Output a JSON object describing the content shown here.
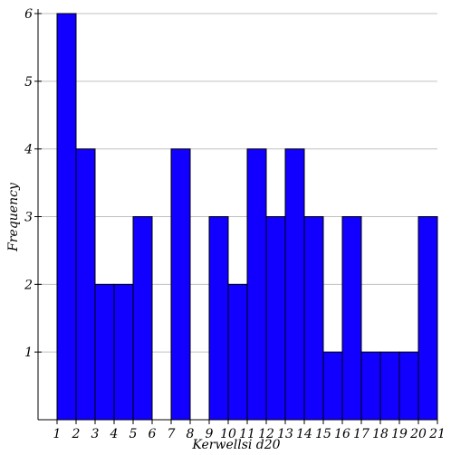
{
  "chart_data": {
    "type": "bar",
    "title": "",
    "xlabel": "Kerwellsi d20",
    "ylabel": "Frequency",
    "x_ticks": [
      "1",
      "2",
      "3",
      "4",
      "5",
      "6",
      "7",
      "8",
      "9",
      "10",
      "11",
      "12",
      "13",
      "14",
      "15",
      "16",
      "17",
      "18",
      "19",
      "20",
      "21"
    ],
    "y_ticks": [
      "1",
      "2",
      "3",
      "4",
      "5",
      "6"
    ],
    "xlim": [
      1,
      21
    ],
    "ylim": [
      0,
      6
    ],
    "bins": [
      {
        "start": 1,
        "end": 2,
        "value": 6
      },
      {
        "start": 2,
        "end": 3,
        "value": 4
      },
      {
        "start": 3,
        "end": 4,
        "value": 2
      },
      {
        "start": 4,
        "end": 5,
        "value": 2
      },
      {
        "start": 5,
        "end": 6,
        "value": 3
      },
      {
        "start": 6,
        "end": 7,
        "value": 0
      },
      {
        "start": 7,
        "end": 8,
        "value": 4
      },
      {
        "start": 8,
        "end": 9,
        "value": 0
      },
      {
        "start": 9,
        "end": 10,
        "value": 3
      },
      {
        "start": 10,
        "end": 11,
        "value": 2
      },
      {
        "start": 11,
        "end": 12,
        "value": 4
      },
      {
        "start": 12,
        "end": 13,
        "value": 3
      },
      {
        "start": 13,
        "end": 14,
        "value": 4
      },
      {
        "start": 14,
        "end": 15,
        "value": 3
      },
      {
        "start": 15,
        "end": 16,
        "value": 1
      },
      {
        "start": 16,
        "end": 17,
        "value": 3
      },
      {
        "start": 17,
        "end": 18,
        "value": 1
      },
      {
        "start": 18,
        "end": 19,
        "value": 1
      },
      {
        "start": 19,
        "end": 20,
        "value": 1
      },
      {
        "start": 20,
        "end": 21,
        "value": 3
      }
    ],
    "grid": true,
    "bar_color": "#1100ff"
  }
}
